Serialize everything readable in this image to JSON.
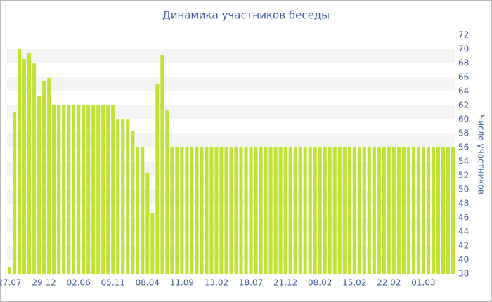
{
  "chart_data": {
    "type": "bar",
    "title": "Динамика участников беседы",
    "y_label": "Число участников",
    "categories": [
      "27.07",
      null,
      null,
      null,
      null,
      null,
      null,
      "29.12",
      null,
      null,
      null,
      null,
      null,
      null,
      "02.06",
      null,
      null,
      null,
      null,
      null,
      null,
      "05.11",
      null,
      null,
      null,
      null,
      null,
      null,
      "08.04",
      null,
      null,
      null,
      null,
      null,
      null,
      "11.09",
      null,
      null,
      null,
      null,
      null,
      null,
      "13.02",
      null,
      null,
      null,
      null,
      null,
      null,
      "18.07",
      null,
      null,
      null,
      null,
      null,
      null,
      "21.12",
      null,
      null,
      null,
      null,
      null,
      null,
      "08.02",
      null,
      null,
      null,
      null,
      null,
      null,
      "15.02",
      null,
      null,
      null,
      null,
      null,
      null,
      "22.02",
      null,
      null,
      null,
      null,
      null,
      null,
      "01.03",
      null,
      null,
      null,
      null,
      null,
      null
    ],
    "values": [
      39,
      61,
      70,
      68.6,
      69.4,
      68.1,
      63.3,
      65.5,
      65.9,
      62,
      62,
      62,
      62,
      62,
      62,
      62,
      62,
      62,
      62,
      62,
      62,
      62,
      60,
      60,
      60,
      58.4,
      56,
      56,
      52.4,
      46.7,
      65,
      69.1,
      61.4,
      56,
      56,
      56,
      56,
      56,
      56,
      56,
      56,
      56,
      56,
      56,
      56,
      56,
      56,
      56,
      56,
      56,
      56,
      56,
      56,
      56,
      56,
      56,
      56,
      56,
      56,
      56,
      56,
      56,
      56,
      56,
      56,
      56,
      56,
      56,
      56,
      56,
      56,
      56,
      56,
      56,
      56,
      56,
      56,
      56,
      56,
      56,
      56,
      56,
      56,
      56,
      56,
      56,
      56,
      56,
      56,
      56,
      56
    ],
    "color": "#bfe234",
    "ylim": [
      38,
      72
    ],
    "yticks": [
      38,
      40,
      42,
      44,
      46,
      48,
      50,
      52,
      54,
      56,
      58,
      60,
      62,
      64,
      66,
      68,
      70,
      72
    ],
    "grid": true
  }
}
